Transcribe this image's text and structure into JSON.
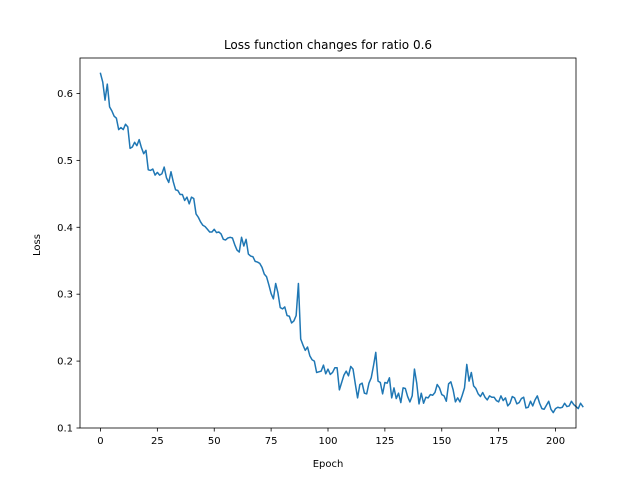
{
  "chart_data": {
    "type": "line",
    "title": "Loss function changes for ratio 0.6",
    "xlabel": "Epoch",
    "ylabel": "Loss",
    "xlim": [
      -9,
      209
    ],
    "ylim": [
      0.1,
      0.653
    ],
    "xticks": [
      0,
      25,
      50,
      75,
      100,
      125,
      150,
      175,
      200
    ],
    "yticks": [
      0.1,
      0.2,
      0.3,
      0.4,
      0.5,
      0.6
    ],
    "ytick_labels": [
      "0.1",
      "0.2",
      "0.3",
      "0.4",
      "0.5",
      "0.6"
    ],
    "grid": false,
    "color": "#1f77b4",
    "series": [
      {
        "values": [
          0.63,
          0.617,
          0.59,
          0.614,
          0.58,
          0.574,
          0.566,
          0.563,
          0.546,
          0.549,
          0.546,
          0.554,
          0.55,
          0.518,
          0.52,
          0.527,
          0.522,
          0.531,
          0.519,
          0.51,
          0.515,
          0.486,
          0.485,
          0.487,
          0.478,
          0.482,
          0.478,
          0.48,
          0.49,
          0.474,
          0.467,
          0.483,
          0.468,
          0.456,
          0.455,
          0.449,
          0.449,
          0.44,
          0.445,
          0.435,
          0.445,
          0.443,
          0.42,
          0.415,
          0.408,
          0.403,
          0.401,
          0.397,
          0.393,
          0.393,
          0.397,
          0.392,
          0.393,
          0.39,
          0.382,
          0.381,
          0.384,
          0.385,
          0.384,
          0.374,
          0.366,
          0.363,
          0.385,
          0.372,
          0.382,
          0.36,
          0.357,
          0.356,
          0.349,
          0.348,
          0.346,
          0.34,
          0.33,
          0.326,
          0.314,
          0.301,
          0.293,
          0.316,
          0.302,
          0.28,
          0.278,
          0.281,
          0.268,
          0.267,
          0.257,
          0.26,
          0.268,
          0.316,
          0.233,
          0.224,
          0.216,
          0.221,
          0.208,
          0.202,
          0.2,
          0.183,
          0.184,
          0.185,
          0.194,
          0.181,
          0.188,
          0.18,
          0.183,
          0.19,
          0.19,
          0.157,
          0.168,
          0.179,
          0.185,
          0.178,
          0.192,
          0.188,
          0.166,
          0.145,
          0.165,
          0.167,
          0.152,
          0.151,
          0.167,
          0.175,
          0.193,
          0.213,
          0.17,
          0.168,
          0.151,
          0.168,
          0.167,
          0.175,
          0.145,
          0.16,
          0.144,
          0.152,
          0.138,
          0.16,
          0.159,
          0.147,
          0.139,
          0.148,
          0.188,
          0.167,
          0.136,
          0.152,
          0.137,
          0.146,
          0.145,
          0.15,
          0.149,
          0.153,
          0.165,
          0.16,
          0.15,
          0.148,
          0.14,
          0.166,
          0.169,
          0.157,
          0.139,
          0.145,
          0.139,
          0.149,
          0.16,
          0.195,
          0.17,
          0.183,
          0.163,
          0.159,
          0.151,
          0.147,
          0.153,
          0.146,
          0.142,
          0.148,
          0.146,
          0.146,
          0.141,
          0.139,
          0.148,
          0.141,
          0.145,
          0.133,
          0.137,
          0.147,
          0.145,
          0.136,
          0.138,
          0.144,
          0.146,
          0.13,
          0.131,
          0.14,
          0.133,
          0.142,
          0.148,
          0.137,
          0.129,
          0.128,
          0.134,
          0.14,
          0.128,
          0.123,
          0.129,
          0.131,
          0.13,
          0.131,
          0.137,
          0.132,
          0.133,
          0.14,
          0.135,
          0.132,
          0.129,
          0.137,
          0.132
        ]
      }
    ]
  }
}
